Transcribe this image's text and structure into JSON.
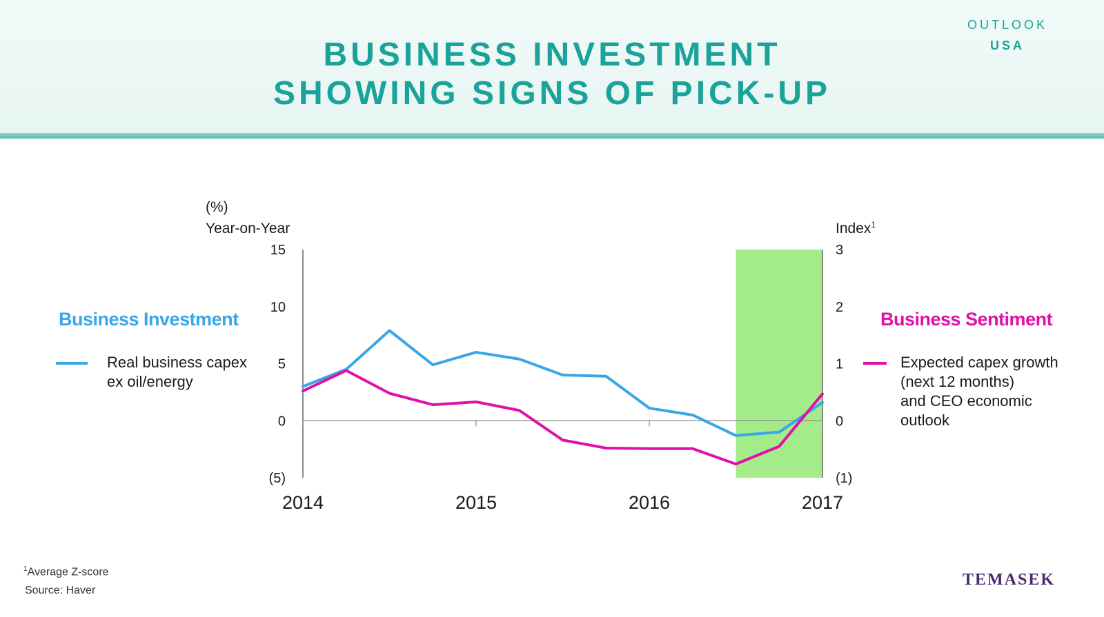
{
  "header": {
    "title_line1": "BUSINESS INVESTMENT",
    "title_line2": "SHOWING SIGNS OF PICK-UP",
    "badge_top": "OUTLOOK",
    "badge_bottom": "USA"
  },
  "colors": {
    "accent": "#1aa39a",
    "investment": "#3aa6e8",
    "sentiment": "#e010a8",
    "highlight": "#a4ec8a",
    "brand": "#4b2a6b"
  },
  "legend": {
    "left_title": "Business Investment",
    "left_line1": "Real business capex",
    "left_line2": "ex oil/energy",
    "right_title": "Business Sentiment",
    "right_line1": "Expected capex growth",
    "right_line2": "(next 12 months)",
    "right_line3": "and CEO economic",
    "right_line4": "outlook"
  },
  "footer": {
    "footnote_mark": "1",
    "footnote": "Average Z-score",
    "source": "Source: Haver",
    "brand": "TEMASEK"
  },
  "chart_data": {
    "type": "line",
    "left_axis": {
      "unit_label": "(%)",
      "label": "Year-on-Year",
      "range": [
        -5,
        15
      ],
      "ticks": [
        15,
        10,
        5,
        0,
        -5
      ],
      "tick_labels": [
        "15",
        "10",
        "5",
        "0",
        "(5)"
      ]
    },
    "right_axis": {
      "label": "Index",
      "label_sup": "1",
      "range": [
        -1,
        3
      ],
      "ticks": [
        3,
        2,
        1,
        0,
        -1
      ],
      "tick_labels": [
        "3",
        "2",
        "1",
        "0",
        "(1)"
      ]
    },
    "x_axis": {
      "range": [
        2014,
        2017
      ],
      "ticks": [
        2014,
        2015,
        2016,
        2017
      ],
      "tick_labels": [
        "2014",
        "2015",
        "2016",
        "2017"
      ]
    },
    "highlight_band": {
      "x_from": 2016.5,
      "x_to": 2017.0
    },
    "series": [
      {
        "name": "Real business capex ex oil/energy",
        "axis": "left",
        "x": [
          2014.0,
          2014.25,
          2014.5,
          2014.75,
          2015.0,
          2015.25,
          2015.5,
          2015.75,
          2016.0,
          2016.25,
          2016.5,
          2016.75,
          2017.0
        ],
        "y": [
          3.0,
          4.5,
          7.9,
          4.9,
          6.0,
          5.4,
          4.0,
          3.9,
          1.1,
          0.5,
          -1.3,
          -1.0,
          1.6
        ]
      },
      {
        "name": "Expected capex growth (next 12 months) and CEO economic outlook",
        "axis": "right",
        "x": [
          2014.0,
          2014.25,
          2014.5,
          2014.75,
          2015.0,
          2015.25,
          2015.5,
          2015.75,
          2016.0,
          2016.25,
          2016.5,
          2016.75,
          2017.0
        ],
        "y": [
          0.52,
          0.88,
          0.48,
          0.28,
          0.33,
          0.18,
          -0.34,
          -0.48,
          -0.49,
          -0.49,
          -0.76,
          -0.45,
          0.47
        ]
      }
    ]
  }
}
